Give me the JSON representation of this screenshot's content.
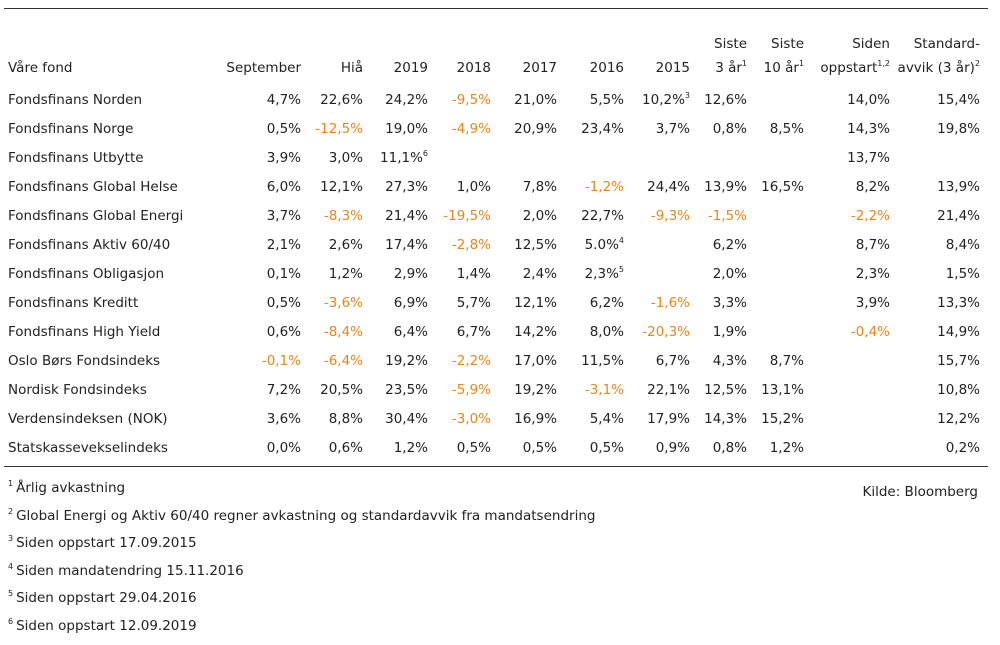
{
  "header": {
    "name": "Våre fond",
    "columns": [
      {
        "l1": "",
        "l2": "September",
        "sup": ""
      },
      {
        "l1": "",
        "l2": "Hiå",
        "sup": ""
      },
      {
        "l1": "",
        "l2": "2019",
        "sup": ""
      },
      {
        "l1": "",
        "l2": "2018",
        "sup": ""
      },
      {
        "l1": "",
        "l2": "2017",
        "sup": ""
      },
      {
        "l1": "",
        "l2": "2016",
        "sup": ""
      },
      {
        "l1": "",
        "l2": "2015",
        "sup": ""
      },
      {
        "l1": "Siste",
        "l2": "3 år",
        "sup": "1"
      },
      {
        "l1": "Siste",
        "l2": "10 år",
        "sup": "1"
      },
      {
        "l1": "Siden",
        "l2": "oppstart",
        "sup": "1,2"
      },
      {
        "l1": "Standard-",
        "l2": "avvik (3 år)",
        "sup": "2"
      }
    ]
  },
  "colors": {
    "negative": "#e8861a",
    "text": "#222222",
    "rule": "#333333"
  },
  "rows": [
    {
      "name": "Fondsfinans Norden",
      "cells": [
        {
          "v": "4,7%",
          "neg": false
        },
        {
          "v": "22,6%",
          "neg": false
        },
        {
          "v": "24,2%",
          "neg": false
        },
        {
          "v": "-9,5%",
          "neg": true
        },
        {
          "v": "21,0%",
          "neg": false
        },
        {
          "v": "5,5%",
          "neg": false
        },
        {
          "v": "10,2%",
          "neg": false,
          "sup": "3"
        },
        {
          "v": "12,6%",
          "neg": false
        },
        {
          "v": "",
          "neg": false
        },
        {
          "v": "14,0%",
          "neg": false
        },
        {
          "v": "15,4%",
          "neg": false
        }
      ]
    },
    {
      "name": "Fondsfinans Norge",
      "cells": [
        {
          "v": "0,5%",
          "neg": false
        },
        {
          "v": "-12,5%",
          "neg": true
        },
        {
          "v": "19,0%",
          "neg": false
        },
        {
          "v": "-4,9%",
          "neg": true
        },
        {
          "v": "20,9%",
          "neg": false
        },
        {
          "v": "23,4%",
          "neg": false
        },
        {
          "v": "3,7%",
          "neg": false
        },
        {
          "v": "0,8%",
          "neg": false
        },
        {
          "v": "8,5%",
          "neg": false
        },
        {
          "v": "14,3%",
          "neg": false
        },
        {
          "v": "19,8%",
          "neg": false
        }
      ]
    },
    {
      "name": "Fondsfinans Utbytte",
      "cells": [
        {
          "v": "3,9%",
          "neg": false
        },
        {
          "v": "3,0%",
          "neg": false
        },
        {
          "v": "11,1%",
          "neg": false,
          "sup": "6"
        },
        {
          "v": "",
          "neg": false
        },
        {
          "v": "",
          "neg": false
        },
        {
          "v": "",
          "neg": false
        },
        {
          "v": "",
          "neg": false
        },
        {
          "v": "",
          "neg": false
        },
        {
          "v": "",
          "neg": false
        },
        {
          "v": "13,7%",
          "neg": false
        },
        {
          "v": "",
          "neg": false
        }
      ]
    },
    {
      "name": "Fondsfinans Global Helse",
      "cells": [
        {
          "v": "6,0%",
          "neg": false
        },
        {
          "v": "12,1%",
          "neg": false
        },
        {
          "v": "27,3%",
          "neg": false
        },
        {
          "v": "1,0%",
          "neg": false
        },
        {
          "v": "7,8%",
          "neg": false
        },
        {
          "v": "-1,2%",
          "neg": true
        },
        {
          "v": "24,4%",
          "neg": false
        },
        {
          "v": "13,9%",
          "neg": false
        },
        {
          "v": "16,5%",
          "neg": false
        },
        {
          "v": "8,2%",
          "neg": false
        },
        {
          "v": "13,9%",
          "neg": false
        }
      ]
    },
    {
      "name": "Fondsfinans Global Energi",
      "cells": [
        {
          "v": "3,7%",
          "neg": false
        },
        {
          "v": "-8,3%",
          "neg": true
        },
        {
          "v": "21,4%",
          "neg": false
        },
        {
          "v": "-19,5%",
          "neg": true
        },
        {
          "v": "2,0%",
          "neg": false
        },
        {
          "v": "22,7%",
          "neg": false
        },
        {
          "v": "-9,3%",
          "neg": true
        },
        {
          "v": "-1,5%",
          "neg": true
        },
        {
          "v": "",
          "neg": false
        },
        {
          "v": "-2,2%",
          "neg": true
        },
        {
          "v": "21,4%",
          "neg": false
        }
      ]
    },
    {
      "name": "Fondsfinans Aktiv 60/40",
      "cells": [
        {
          "v": "2,1%",
          "neg": false
        },
        {
          "v": "2,6%",
          "neg": false
        },
        {
          "v": "17,4%",
          "neg": false
        },
        {
          "v": "-2,8%",
          "neg": true
        },
        {
          "v": "12,5%",
          "neg": false
        },
        {
          "v": "5.0%",
          "neg": false,
          "sup": "4"
        },
        {
          "v": "",
          "neg": false
        },
        {
          "v": "6,2%",
          "neg": false
        },
        {
          "v": "",
          "neg": false
        },
        {
          "v": "8,7%",
          "neg": false
        },
        {
          "v": "8,4%",
          "neg": false
        }
      ]
    },
    {
      "name": "Fondsfinans Obligasjon",
      "cells": [
        {
          "v": "0,1%",
          "neg": false
        },
        {
          "v": "1,2%",
          "neg": false
        },
        {
          "v": "2,9%",
          "neg": false
        },
        {
          "v": "1,4%",
          "neg": false
        },
        {
          "v": "2,4%",
          "neg": false
        },
        {
          "v": "2,3%",
          "neg": false,
          "sup": "5"
        },
        {
          "v": "",
          "neg": false
        },
        {
          "v": "2,0%",
          "neg": false
        },
        {
          "v": "",
          "neg": false
        },
        {
          "v": "2,3%",
          "neg": false
        },
        {
          "v": "1,5%",
          "neg": false
        }
      ]
    },
    {
      "name": "Fondsfinans Kreditt",
      "cells": [
        {
          "v": "0,5%",
          "neg": false
        },
        {
          "v": "-3,6%",
          "neg": true
        },
        {
          "v": "6,9%",
          "neg": false
        },
        {
          "v": "5,7%",
          "neg": false
        },
        {
          "v": "12,1%",
          "neg": false
        },
        {
          "v": "6,2%",
          "neg": false
        },
        {
          "v": "-1,6%",
          "neg": true
        },
        {
          "v": "3,3%",
          "neg": false
        },
        {
          "v": "",
          "neg": false
        },
        {
          "v": "3,9%",
          "neg": false
        },
        {
          "v": "13,3%",
          "neg": false
        }
      ]
    },
    {
      "name": "Fondsfinans High Yield",
      "cells": [
        {
          "v": "0,6%",
          "neg": false
        },
        {
          "v": "-8,4%",
          "neg": true
        },
        {
          "v": "6,4%",
          "neg": false
        },
        {
          "v": "6,7%",
          "neg": false
        },
        {
          "v": "14,2%",
          "neg": false
        },
        {
          "v": "8,0%",
          "neg": false
        },
        {
          "v": "-20,3%",
          "neg": true
        },
        {
          "v": "1,9%",
          "neg": false
        },
        {
          "v": "",
          "neg": false
        },
        {
          "v": "-0,4%",
          "neg": true
        },
        {
          "v": "14,9%",
          "neg": false
        }
      ]
    },
    {
      "name": "Oslo Børs Fondsindeks",
      "cells": [
        {
          "v": "-0,1%",
          "neg": true
        },
        {
          "v": "-6,4%",
          "neg": true
        },
        {
          "v": "19,2%",
          "neg": false
        },
        {
          "v": "-2,2%",
          "neg": true
        },
        {
          "v": "17,0%",
          "neg": false
        },
        {
          "v": "11,5%",
          "neg": false
        },
        {
          "v": "6,7%",
          "neg": false
        },
        {
          "v": "4,3%",
          "neg": false
        },
        {
          "v": "8,7%",
          "neg": false
        },
        {
          "v": "",
          "neg": false
        },
        {
          "v": "15,7%",
          "neg": false
        }
      ]
    },
    {
      "name": "Nordisk Fondsindeks",
      "cells": [
        {
          "v": "7,2%",
          "neg": false
        },
        {
          "v": "20,5%",
          "neg": false
        },
        {
          "v": "23,5%",
          "neg": false
        },
        {
          "v": "-5,9%",
          "neg": true
        },
        {
          "v": "19,2%",
          "neg": false
        },
        {
          "v": "-3,1%",
          "neg": true
        },
        {
          "v": "22,1%",
          "neg": false
        },
        {
          "v": "12,5%",
          "neg": false
        },
        {
          "v": "13,1%",
          "neg": false
        },
        {
          "v": "",
          "neg": false
        },
        {
          "v": "10,8%",
          "neg": false
        }
      ]
    },
    {
      "name": "Verdensindeksen (NOK)",
      "cells": [
        {
          "v": "3,6%",
          "neg": false
        },
        {
          "v": "8,8%",
          "neg": false
        },
        {
          "v": "30,4%",
          "neg": false
        },
        {
          "v": "-3,0%",
          "neg": true
        },
        {
          "v": "16,9%",
          "neg": false
        },
        {
          "v": "5,4%",
          "neg": false
        },
        {
          "v": "17,9%",
          "neg": false
        },
        {
          "v": "14,3%",
          "neg": false
        },
        {
          "v": "15,2%",
          "neg": false
        },
        {
          "v": "",
          "neg": false
        },
        {
          "v": "12,2%",
          "neg": false
        }
      ]
    },
    {
      "name": "Statskassevekselindeks",
      "cells": [
        {
          "v": "0,0%",
          "neg": false
        },
        {
          "v": "0,6%",
          "neg": false
        },
        {
          "v": "1,2%",
          "neg": false
        },
        {
          "v": "0,5%",
          "neg": false
        },
        {
          "v": "0,5%",
          "neg": false
        },
        {
          "v": "0,5%",
          "neg": false
        },
        {
          "v": "0,9%",
          "neg": false
        },
        {
          "v": "0,8%",
          "neg": false
        },
        {
          "v": "1,2%",
          "neg": false
        },
        {
          "v": "",
          "neg": false
        },
        {
          "v": "0,2%",
          "neg": false
        }
      ]
    }
  ],
  "footnotes": [
    {
      "n": "1",
      "text": "Årlig avkastning"
    },
    {
      "n": "2",
      "text": "Global Energi og Aktiv 60/40 regner avkastning og standardavvik fra mandatsendring"
    },
    {
      "n": "3",
      "text": "Siden oppstart 17.09.2015"
    },
    {
      "n": "4",
      "text": "Siden mandatendring 15.11.2016"
    },
    {
      "n": "5",
      "text": "Siden oppstart 29.04.2016"
    },
    {
      "n": "6",
      "text": "Siden oppstart 12.09.2019"
    }
  ],
  "source": "Kilde: Bloomberg"
}
